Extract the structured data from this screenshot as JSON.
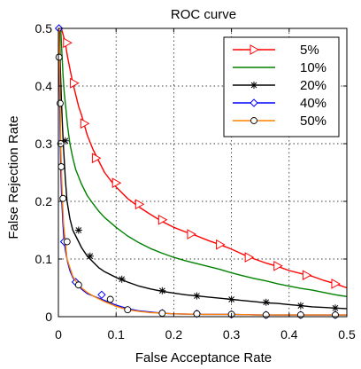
{
  "chart_data": {
    "type": "line",
    "title": "ROC curve",
    "xlabel": "False Acceptance Rate",
    "ylabel": "False Rejection Rate",
    "xlim": [
      0,
      0.5
    ],
    "ylim": [
      0,
      0.5
    ],
    "xticks": [
      "0",
      "0.1",
      "0.2",
      "0.3",
      "0.4",
      "0.5"
    ],
    "yticks": [
      "0",
      "0.1",
      "0.2",
      "0.3",
      "0.4",
      "0.5"
    ],
    "grid": true,
    "legend_position": "top-right",
    "series": [
      {
        "name": "5%",
        "color": "#ff0000",
        "marker": "triangle-right",
        "x": [
          0.005,
          0.008,
          0.012,
          0.016,
          0.02,
          0.025,
          0.03,
          0.035,
          0.04,
          0.05,
          0.06,
          0.07,
          0.08,
          0.09,
          0.1,
          0.12,
          0.14,
          0.16,
          0.18,
          0.2,
          0.22,
          0.24,
          0.26,
          0.28,
          0.3,
          0.32,
          0.34,
          0.36,
          0.38,
          0.4,
          0.42,
          0.44,
          0.46,
          0.48,
          0.5
        ],
        "y": [
          0.5,
          0.49,
          0.475,
          0.45,
          0.43,
          0.405,
          0.385,
          0.365,
          0.35,
          0.315,
          0.29,
          0.27,
          0.25,
          0.237,
          0.225,
          0.205,
          0.19,
          0.177,
          0.165,
          0.155,
          0.147,
          0.14,
          0.132,
          0.125,
          0.117,
          0.108,
          0.1,
          0.093,
          0.087,
          0.08,
          0.075,
          0.07,
          0.063,
          0.057,
          0.05
        ],
        "marker_x": [
          0.015,
          0.027,
          0.045,
          0.065,
          0.1,
          0.14,
          0.18,
          0.23,
          0.28,
          0.33,
          0.38,
          0.43,
          0.48
        ],
        "marker_y": [
          0.475,
          0.405,
          0.335,
          0.275,
          0.232,
          0.195,
          0.168,
          0.143,
          0.125,
          0.103,
          0.088,
          0.072,
          0.057
        ]
      },
      {
        "name": "10%",
        "color": "#008000",
        "marker": "none",
        "x": [
          0.004,
          0.006,
          0.008,
          0.01,
          0.013,
          0.016,
          0.02,
          0.025,
          0.03,
          0.04,
          0.05,
          0.06,
          0.07,
          0.08,
          0.1,
          0.12,
          0.14,
          0.16,
          0.18,
          0.2,
          0.22,
          0.24,
          0.26,
          0.28,
          0.3,
          0.32,
          0.34,
          0.36,
          0.38,
          0.4,
          0.42,
          0.44,
          0.46,
          0.48,
          0.5
        ],
        "y": [
          0.5,
          0.46,
          0.42,
          0.39,
          0.36,
          0.33,
          0.3,
          0.275,
          0.255,
          0.23,
          0.21,
          0.196,
          0.183,
          0.172,
          0.155,
          0.14,
          0.128,
          0.118,
          0.11,
          0.103,
          0.097,
          0.092,
          0.087,
          0.082,
          0.076,
          0.071,
          0.066,
          0.062,
          0.057,
          0.053,
          0.049,
          0.046,
          0.042,
          0.038,
          0.035
        ],
        "marker_x": [],
        "marker_y": []
      },
      {
        "name": "20%",
        "color": "#000000",
        "marker": "asterisk",
        "x": [
          0.002,
          0.003,
          0.005,
          0.007,
          0.009,
          0.012,
          0.015,
          0.02,
          0.025,
          0.03,
          0.04,
          0.05,
          0.06,
          0.07,
          0.08,
          0.1,
          0.12,
          0.14,
          0.16,
          0.18,
          0.2,
          0.22,
          0.24,
          0.26,
          0.28,
          0.3,
          0.32,
          0.34,
          0.36,
          0.38,
          0.4,
          0.42,
          0.44,
          0.46,
          0.48,
          0.5
        ],
        "y": [
          0.5,
          0.44,
          0.38,
          0.33,
          0.29,
          0.24,
          0.2,
          0.17,
          0.15,
          0.14,
          0.12,
          0.105,
          0.095,
          0.085,
          0.078,
          0.068,
          0.06,
          0.053,
          0.048,
          0.044,
          0.041,
          0.038,
          0.036,
          0.034,
          0.032,
          0.03,
          0.028,
          0.026,
          0.024,
          0.023,
          0.021,
          0.019,
          0.017,
          0.016,
          0.015,
          0.014
        ],
        "marker_x": [
          0.012,
          0.035,
          0.055,
          0.11,
          0.18,
          0.24,
          0.3,
          0.36,
          0.42,
          0.48
        ],
        "marker_y": [
          0.305,
          0.15,
          0.105,
          0.065,
          0.045,
          0.036,
          0.03,
          0.025,
          0.019,
          0.015
        ]
      },
      {
        "name": "40%",
        "color": "#0000ff",
        "marker": "diamond",
        "x": [
          0.001,
          0.002,
          0.003,
          0.004,
          0.006,
          0.008,
          0.01,
          0.013,
          0.016,
          0.02,
          0.025,
          0.03,
          0.04,
          0.05,
          0.06,
          0.07,
          0.08,
          0.09,
          0.1,
          0.12,
          0.14,
          0.16,
          0.18,
          0.2,
          0.25,
          0.3,
          0.35,
          0.4,
          0.45,
          0.5
        ],
        "y": [
          0.5,
          0.4,
          0.32,
          0.26,
          0.2,
          0.16,
          0.13,
          0.11,
          0.095,
          0.08,
          0.068,
          0.06,
          0.048,
          0.04,
          0.036,
          0.032,
          0.028,
          0.024,
          0.02,
          0.014,
          0.01,
          0.008,
          0.006,
          0.005,
          0.004,
          0.004,
          0.003,
          0.003,
          0.003,
          0.003
        ],
        "marker_x": [
          0.001,
          0.01,
          0.03,
          0.075,
          0.18,
          0.24,
          0.3,
          0.36,
          0.42,
          0.48
        ],
        "marker_y": [
          0.5,
          0.13,
          0.06,
          0.038,
          0.006,
          0.005,
          0.004,
          0.003,
          0.003,
          0.003
        ]
      },
      {
        "name": "50%",
        "color": "#ff8000",
        "marker": "circle",
        "x": [
          0.001,
          0.002,
          0.003,
          0.004,
          0.005,
          0.007,
          0.009,
          0.012,
          0.015,
          0.02,
          0.025,
          0.03,
          0.04,
          0.05,
          0.06,
          0.07,
          0.08,
          0.1,
          0.12,
          0.14,
          0.16,
          0.18,
          0.2,
          0.25,
          0.3,
          0.35,
          0.4,
          0.45,
          0.5
        ],
        "y": [
          0.5,
          0.45,
          0.37,
          0.3,
          0.26,
          0.2,
          0.16,
          0.13,
          0.1,
          0.085,
          0.07,
          0.062,
          0.05,
          0.042,
          0.036,
          0.031,
          0.026,
          0.018,
          0.012,
          0.009,
          0.007,
          0.006,
          0.005,
          0.004,
          0.004,
          0.003,
          0.003,
          0.003,
          0.003
        ],
        "marker_x": [
          0.001,
          0.003,
          0.004,
          0.005,
          0.008,
          0.015,
          0.035,
          0.09,
          0.12,
          0.18,
          0.24,
          0.3,
          0.36,
          0.42,
          0.48
        ],
        "marker_y": [
          0.45,
          0.37,
          0.3,
          0.26,
          0.205,
          0.13,
          0.055,
          0.03,
          0.012,
          0.006,
          0.005,
          0.004,
          0.003,
          0.003,
          0.003
        ]
      }
    ]
  }
}
